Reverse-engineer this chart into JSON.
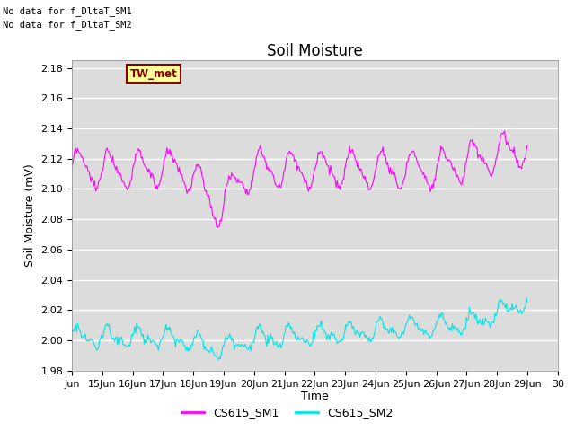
{
  "title": "Soil Moisture",
  "ylabel": "Soil Moisture (mV)",
  "xlabel": "Time",
  "ylim": [
    1.98,
    2.185
  ],
  "bg_color": "#dcdcdc",
  "fig_color": "#ffffff",
  "no_data_text": [
    "No data for f_DltaT_SM1",
    "No data for f_DltaT_SM2"
  ],
  "tw_met_label": "TW_met",
  "tw_met_bg": "#ffff99",
  "tw_met_border": "#8b0000",
  "tw_met_text_color": "#8b0000",
  "legend_entries": [
    "CS615_SM1",
    "CS615_SM2"
  ],
  "line_color_sm1": "#ff00ff",
  "line_color_sm2": "#00e5e5",
  "xtick_labels": [
    "Jun",
    "15Jun",
    "16Jun",
    "17Jun",
    "18Jun",
    "19Jun",
    "20Jun",
    "21Jun",
    "22Jun",
    "23Jun",
    "24Jun",
    "25Jun",
    "26Jun",
    "27Jun",
    "28Jun",
    "29Jun",
    "30"
  ],
  "grid_color": "#ffffff",
  "title_fontsize": 12,
  "label_fontsize": 9,
  "tick_fontsize": 8
}
